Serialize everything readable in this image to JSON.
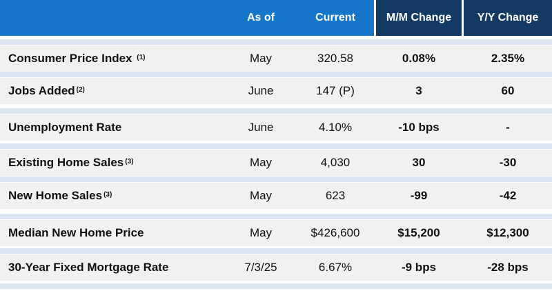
{
  "header": {
    "as_of": "As of",
    "current": "Current",
    "mm_change": "M/M Change",
    "yy_change": "Y/Y Change"
  },
  "colors": {
    "header_blue": "#1676c9",
    "header_dark": "#133a63",
    "negative_red": "#b3171d",
    "row_bg": "#f1f1f1",
    "stripe": "#dce6f3"
  },
  "rows": [
    {
      "label": "Consumer Price Index ",
      "note": "(1)",
      "as_of": "May",
      "current": "320.58",
      "mm": "0.08%",
      "yy": "2.35%",
      "mm_neg": false,
      "yy_neg": false
    },
    {
      "label": "Jobs Added",
      "note": "(2)",
      "as_of": "June",
      "current": "147 (P)",
      "mm": "3",
      "yy": "60",
      "mm_neg": false,
      "yy_neg": false
    },
    {
      "label": "Unemployment Rate",
      "note": "",
      "as_of": "June",
      "current": "4.10%",
      "mm": "-10 bps",
      "yy": "-",
      "mm_neg": true,
      "yy_neg": false
    },
    {
      "label": "Existing Home Sales",
      "note": "(3)",
      "as_of": "May",
      "current": "4,030",
      "mm": "30",
      "yy": "-30",
      "mm_neg": false,
      "yy_neg": true
    },
    {
      "label": "New Home Sales",
      "note": "(3)",
      "as_of": "May",
      "current": "623",
      "mm": "-99",
      "yy": "-42",
      "mm_neg": true,
      "yy_neg": true
    },
    {
      "label": "Median New Home Price",
      "note": "",
      "as_of": "May",
      "current": "$426,600",
      "mm": "$15,200",
      "yy": "$12,300",
      "mm_neg": false,
      "yy_neg": false
    },
    {
      "label": "30-Year Fixed Mortgage Rate",
      "note": "",
      "as_of": "7/3/25",
      "current": "6.67%",
      "mm": "-9 bps",
      "yy": "-28 bps",
      "mm_neg": true,
      "yy_neg": true
    }
  ]
}
